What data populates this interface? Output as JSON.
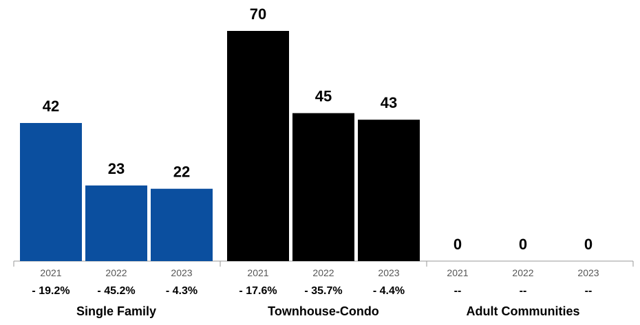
{
  "chart_data": {
    "type": "bar",
    "ylim": [
      0,
      70
    ],
    "grid": false,
    "groups": [
      {
        "name": "Single Family",
        "color": "#0b4f9f",
        "years": [
          "2021",
          "2022",
          "2023"
        ],
        "values": [
          42,
          23,
          22
        ],
        "value_labels": [
          "42",
          "23",
          "22"
        ],
        "changes": [
          "- 19.2%",
          "- 45.2%",
          "- 4.3%"
        ]
      },
      {
        "name": "Townhouse-Condo",
        "color": "#000000",
        "years": [
          "2021",
          "2022",
          "2023"
        ],
        "values": [
          70,
          45,
          43
        ],
        "value_labels": [
          "70",
          "45",
          "43"
        ],
        "changes": [
          "- 17.6%",
          "- 35.7%",
          "- 4.4%"
        ]
      },
      {
        "name": "Adult Communities",
        "color": "#888888",
        "years": [
          "2021",
          "2022",
          "2023"
        ],
        "values": [
          0,
          0,
          0
        ],
        "value_labels": [
          "0",
          "0",
          "0"
        ],
        "changes": [
          "--",
          "--",
          "--"
        ]
      }
    ]
  }
}
